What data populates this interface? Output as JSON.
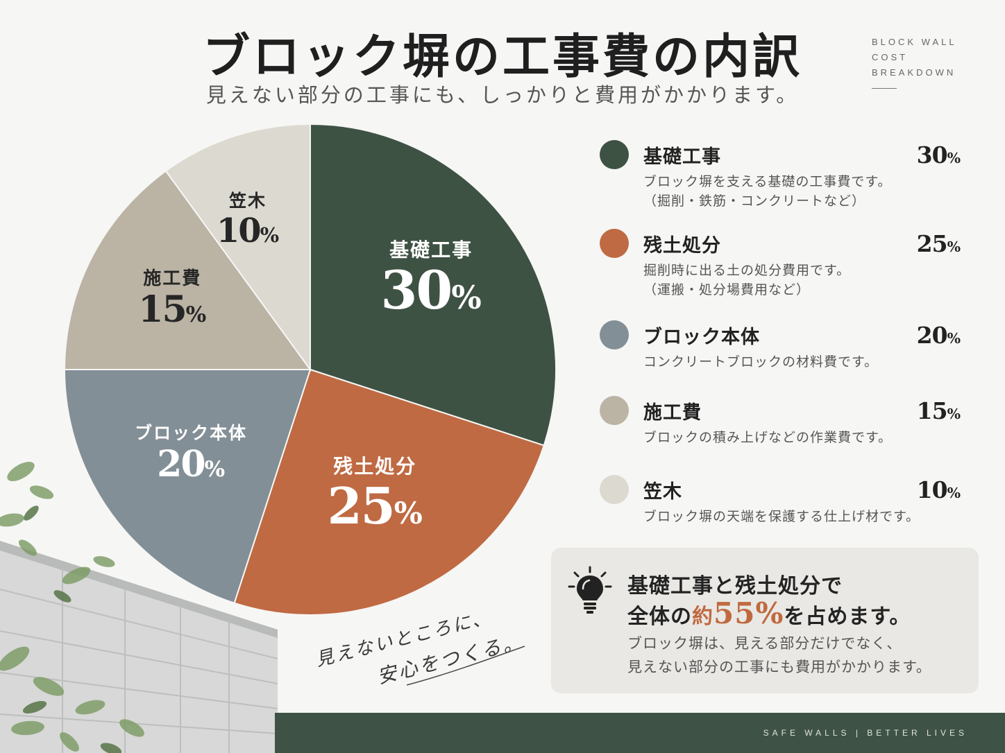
{
  "header": {
    "title": "ブロック塀の工事費の内訳",
    "subtitle": "見えない部分の工事にも、しっかりと費用がかかります。",
    "en_title_lines": [
      "BLOCK WALL",
      "COST",
      "BREAKDOWN"
    ]
  },
  "chart_data": {
    "type": "pie",
    "unit": "%",
    "slices": [
      {
        "label": "基礎工事",
        "value": 30,
        "color": "#3e5244",
        "text_color": "#ffffff"
      },
      {
        "label": "残土処分",
        "value": 25,
        "color": "#bf6a43",
        "text_color": "#ffffff"
      },
      {
        "label": "ブロック本体",
        "value": 20,
        "color": "#838f96",
        "text_color": "#ffffff"
      },
      {
        "label": "施工費",
        "value": 15,
        "color": "#bbb4a5",
        "text_color": "#262626"
      },
      {
        "label": "笠木",
        "value": 10,
        "color": "#dcd9d1",
        "text_color": "#262626"
      }
    ]
  },
  "legend": [
    {
      "name": "基礎工事",
      "percent": "30",
      "unit": "%",
      "color": "#3e5244",
      "desc": [
        "ブロック塀を支える基礎の工事費です。",
        "（掘削・鉄筋・コンクリートなど）"
      ]
    },
    {
      "name": "残土処分",
      "percent": "25",
      "unit": "%",
      "color": "#bf6a43",
      "desc": [
        "掘削時に出る土の処分費用です。",
        "（運搬・処分場費用など）"
      ]
    },
    {
      "name": "ブロック本体",
      "percent": "20",
      "unit": "%",
      "color": "#838f96",
      "desc": [
        "コンクリートブロックの材料費です。"
      ]
    },
    {
      "name": "施工費",
      "percent": "15",
      "unit": "%",
      "color": "#bbb4a5",
      "desc": [
        "ブロックの積み上げなどの作業費です。"
      ]
    },
    {
      "name": "笠木",
      "percent": "10",
      "unit": "%",
      "color": "#dcd9d1",
      "desc": [
        "ブロック塀の天端を保護する仕上げ材です。"
      ]
    }
  ],
  "callout": {
    "line1": "基礎工事と残土処分で",
    "line2_pre": "全体の",
    "line2_acc": "約",
    "line2_num": "55%",
    "line2_post": "を占めます。",
    "line3": "ブロック塀は、見える部分だけでなく、",
    "line4": "見えない部分の工事にも費用がかかります。",
    "icon": "lightbulb-icon"
  },
  "handwriting": {
    "line1": "見えないところに、",
    "line2": "安心をつくる。"
  },
  "footer": {
    "text": "SAFE WALLS   |   BETTER LIVES",
    "color": "#3e5345"
  }
}
